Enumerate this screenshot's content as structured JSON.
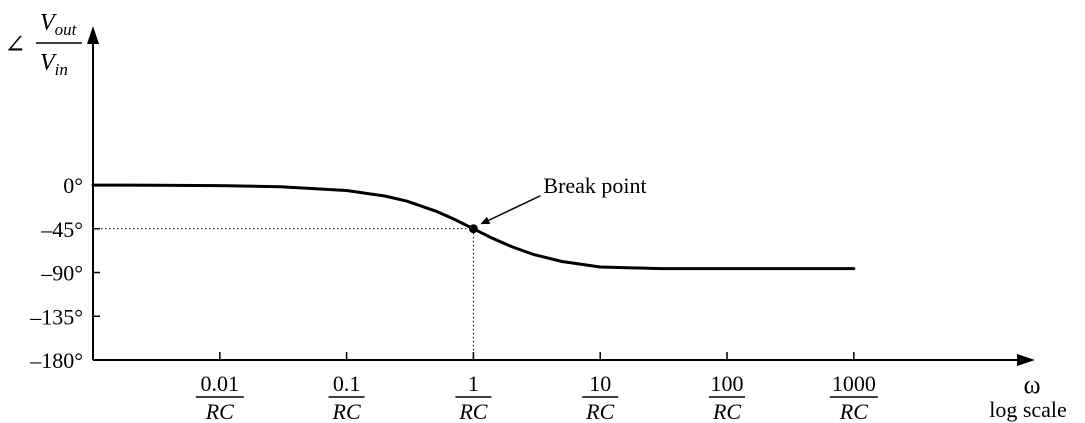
{
  "chart_data": {
    "type": "line",
    "x_scale": "log",
    "x_unit": "RC",
    "x_ticks": [
      {
        "num": "0.01",
        "den": "RC",
        "value": 0.01
      },
      {
        "num": "0.1",
        "den": "RC",
        "value": 0.1
      },
      {
        "num": "1",
        "den": "RC",
        "value": 1
      },
      {
        "num": "10",
        "den": "RC",
        "value": 10
      },
      {
        "num": "100",
        "den": "RC",
        "value": 100
      },
      {
        "num": "1000",
        "den": "RC",
        "value": 1000
      }
    ],
    "y_ticks": [
      {
        "label": "0°",
        "value": 0
      },
      {
        "label": "–45°",
        "value": -45
      },
      {
        "label": "–90°",
        "value": -90
      },
      {
        "label": "–135°",
        "value": -135
      },
      {
        "label": "–180°",
        "value": -180
      }
    ],
    "ylim": [
      -180,
      0
    ],
    "xlim_decades": [
      -3,
      4.35
    ],
    "x_axis_label": {
      "symbol": "ω",
      "note": "log scale"
    },
    "y_axis_label": {
      "angle": "∠",
      "num": "V",
      "num_sub": "out",
      "den": "V",
      "den_sub": "in"
    },
    "series": [
      {
        "x": [
          0.001,
          0.003,
          0.01,
          0.03,
          0.1,
          0.2,
          0.3,
          0.5,
          0.7,
          1,
          1.4,
          2,
          3,
          5,
          10,
          30,
          100,
          300,
          1000
        ],
        "y": [
          -0.1,
          -0.2,
          -0.6,
          -1.7,
          -5.7,
          -11.3,
          -16.7,
          -26.6,
          -35.0,
          -45,
          -54.5,
          -63.4,
          -71.6,
          -78.7,
          -84.3,
          -86.0,
          -86.0,
          -86.0,
          -86.0
        ]
      }
    ],
    "annotations": [
      {
        "text": "Break point",
        "x": 1,
        "y": -45
      }
    ],
    "guides": {
      "dotted_lines_at": {
        "x": 1,
        "y": -45
      }
    },
    "grid": false
  }
}
